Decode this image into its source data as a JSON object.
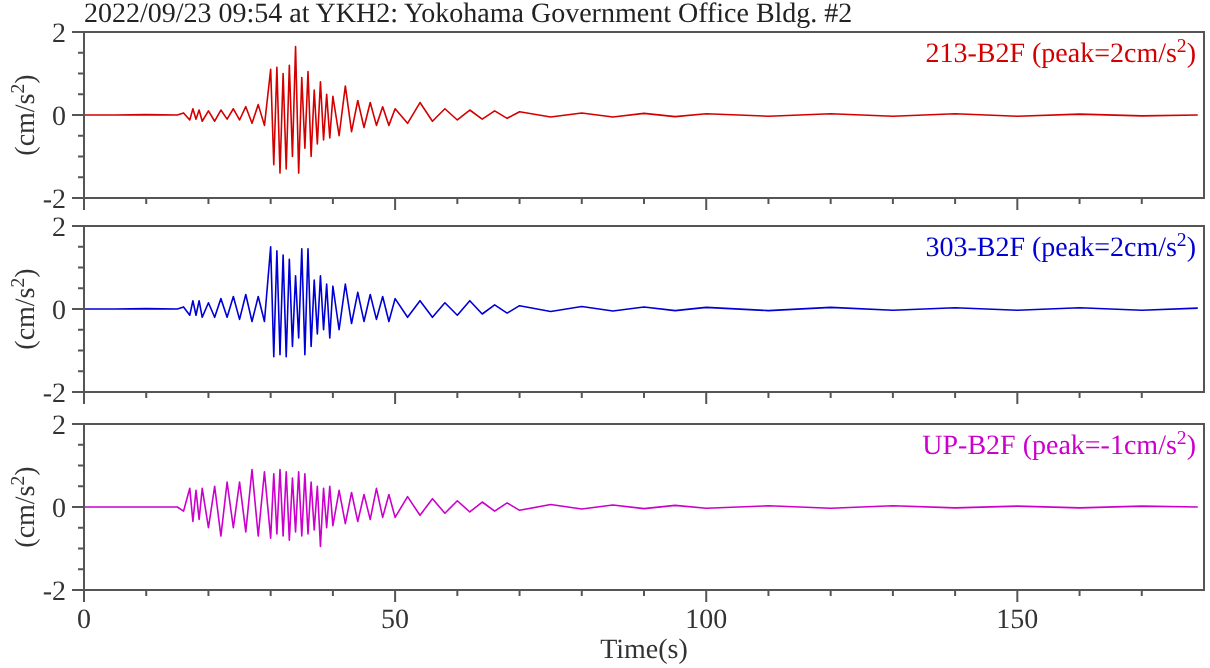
{
  "chart_data": [
    {
      "type": "line",
      "title": "2022/09/23 09:54 at YKH2: Yokohama Government Office Bldg. #2",
      "ylabel": "(cm/s$^{2}$)",
      "tick_labels": "y",
      "xlim": [
        0,
        180
      ],
      "xticks": [
        0,
        {
          "value": 10,
          "label": null
        },
        {
          "value": 20,
          "label": null
        },
        {
          "value": 30,
          "label": null
        },
        {
          "value": 40,
          "label": null
        },
        50,
        {
          "value": 60,
          "label": null
        },
        {
          "value": 70,
          "label": null
        },
        {
          "value": 80,
          "label": null
        },
        {
          "value": 90,
          "label": null
        },
        100,
        {
          "value": 110,
          "label": null
        },
        {
          "value": 120,
          "label": null
        },
        {
          "value": 130,
          "label": null
        },
        {
          "value": 140,
          "label": null
        },
        150,
        {
          "value": 160,
          "label": null
        },
        {
          "value": 170,
          "label": null
        }
      ],
      "ylim": [
        -2,
        2
      ],
      "yticks": [
        -2,
        {
          "value": -1.5,
          "label": null
        },
        {
          "value": -1,
          "label": null
        },
        {
          "value": -0.5,
          "label": null
        },
        0,
        {
          "value": 0.5,
          "label": null
        },
        {
          "value": 1,
          "label": null
        },
        {
          "value": 1.5,
          "label": null
        },
        2
      ],
      "x": [
        0,
        5,
        10,
        15,
        16,
        17,
        17.5,
        18,
        18.5,
        19,
        20,
        21,
        22,
        23,
        24,
        25,
        26,
        27,
        28,
        29,
        30,
        30.5,
        31,
        31.5,
        32,
        32.5,
        33,
        33.5,
        34,
        34.5,
        35,
        35.5,
        36,
        36.5,
        37,
        37.5,
        38,
        38.5,
        39,
        39.5,
        40,
        41,
        42,
        43,
        44,
        45,
        46,
        47,
        48,
        49,
        50,
        52,
        54,
        56,
        58,
        60,
        62,
        64,
        66,
        68,
        70,
        75,
        80,
        85,
        90,
        95,
        100,
        110,
        120,
        130,
        140,
        150,
        160,
        170,
        179
      ],
      "series": [
        {
          "name": "213-B2F (peak=2cm/s$^{2}$)",
          "color": "#d40000",
          "values": [
            0,
            0,
            0.01,
            0,
            0.05,
            -0.12,
            0.15,
            -0.1,
            0.12,
            -0.15,
            0.1,
            -0.15,
            0.12,
            -0.1,
            0.15,
            -0.12,
            0.2,
            -0.2,
            0.25,
            -0.25,
            1.1,
            -1.2,
            1.15,
            -1.4,
            1.0,
            -1.3,
            1.2,
            -1.0,
            1.65,
            -1.4,
            0.9,
            -0.8,
            1.05,
            -1.0,
            0.6,
            -0.7,
            0.8,
            -0.6,
            0.5,
            -0.55,
            0.45,
            -0.5,
            0.7,
            -0.4,
            0.35,
            -0.3,
            0.3,
            -0.25,
            0.2,
            -0.25,
            0.15,
            -0.2,
            0.3,
            -0.15,
            0.15,
            -0.12,
            0.12,
            -0.1,
            0.1,
            -0.08,
            0.08,
            -0.05,
            0.05,
            -0.05,
            0.04,
            -0.04,
            0.03,
            -0.03,
            0.03,
            -0.03,
            0.03,
            -0.03,
            0.02,
            -0.02,
            0
          ]
        }
      ]
    },
    {
      "type": "line",
      "ylabel": "(cm/s$^{2}$)",
      "tick_labels": "y",
      "xlim": [
        0,
        180
      ],
      "xticks": [
        0,
        {
          "value": 10,
          "label": null
        },
        {
          "value": 20,
          "label": null
        },
        {
          "value": 30,
          "label": null
        },
        {
          "value": 40,
          "label": null
        },
        50,
        {
          "value": 60,
          "label": null
        },
        {
          "value": 70,
          "label": null
        },
        {
          "value": 80,
          "label": null
        },
        {
          "value": 90,
          "label": null
        },
        100,
        {
          "value": 110,
          "label": null
        },
        {
          "value": 120,
          "label": null
        },
        {
          "value": 130,
          "label": null
        },
        {
          "value": 140,
          "label": null
        },
        150,
        {
          "value": 160,
          "label": null
        },
        {
          "value": 170,
          "label": null
        }
      ],
      "ylim": [
        -2,
        2
      ],
      "yticks": [
        -2,
        {
          "value": -1.5,
          "label": null
        },
        {
          "value": -1,
          "label": null
        },
        {
          "value": -0.5,
          "label": null
        },
        0,
        {
          "value": 0.5,
          "label": null
        },
        {
          "value": 1,
          "label": null
        },
        {
          "value": 1.5,
          "label": null
        },
        2
      ],
      "x": [
        0,
        5,
        10,
        15,
        16,
        17,
        17.5,
        18,
        18.5,
        19,
        20,
        21,
        22,
        23,
        24,
        25,
        26,
        27,
        28,
        29,
        30,
        30.5,
        31,
        31.5,
        32,
        32.5,
        33,
        33.5,
        34,
        34.5,
        35,
        35.5,
        36,
        36.5,
        37,
        37.5,
        38,
        38.5,
        39,
        39.5,
        40,
        41,
        42,
        43,
        44,
        45,
        46,
        47,
        48,
        49,
        50,
        52,
        54,
        56,
        58,
        60,
        62,
        64,
        66,
        68,
        70,
        75,
        80,
        85,
        90,
        95,
        100,
        110,
        120,
        130,
        140,
        150,
        160,
        170,
        179
      ],
      "series": [
        {
          "name": "303-B2F (peak=2cm/s$^{2}$)",
          "color": "#0000d4",
          "values": [
            0,
            0,
            0.01,
            0,
            0.05,
            -0.15,
            0.2,
            -0.15,
            0.2,
            -0.2,
            0.15,
            -0.2,
            0.25,
            -0.2,
            0.3,
            -0.25,
            0.35,
            -0.3,
            0.3,
            -0.3,
            1.5,
            -1.15,
            1.4,
            -1.1,
            1.3,
            -1.15,
            1.2,
            -0.9,
            0.8,
            -0.7,
            1.45,
            -1.1,
            1.45,
            -0.9,
            0.7,
            -0.6,
            0.8,
            -0.5,
            0.6,
            -0.7,
            0.55,
            -0.5,
            0.6,
            -0.35,
            0.4,
            -0.3,
            0.35,
            -0.25,
            0.3,
            -0.3,
            0.25,
            -0.2,
            0.2,
            -0.2,
            0.15,
            -0.15,
            0.2,
            -0.12,
            0.1,
            -0.1,
            0.08,
            -0.06,
            0.06,
            -0.05,
            0.05,
            -0.04,
            0.04,
            -0.04,
            0.04,
            -0.03,
            0.03,
            -0.03,
            0.03,
            -0.03,
            0.02
          ]
        }
      ]
    },
    {
      "type": "line",
      "ylabel": "(cm/s$^{2}$)",
      "xlabel": "Time(s)",
      "xlim": [
        0,
        180
      ],
      "xticks": [
        0,
        {
          "value": 10,
          "label": null
        },
        {
          "value": 20,
          "label": null
        },
        {
          "value": 30,
          "label": null
        },
        {
          "value": 40,
          "label": null
        },
        50,
        {
          "value": 60,
          "label": null
        },
        {
          "value": 70,
          "label": null
        },
        {
          "value": 80,
          "label": null
        },
        {
          "value": 90,
          "label": null
        },
        100,
        {
          "value": 110,
          "label": null
        },
        {
          "value": 120,
          "label": null
        },
        {
          "value": 130,
          "label": null
        },
        {
          "value": 140,
          "label": null
        },
        150,
        {
          "value": 160,
          "label": null
        },
        {
          "value": 170,
          "label": null
        }
      ],
      "ylim": [
        -2,
        2
      ],
      "yticks": [
        -2,
        {
          "value": -1.5,
          "label": null
        },
        {
          "value": -1,
          "label": null
        },
        {
          "value": -0.5,
          "label": null
        },
        0,
        {
          "value": 0.5,
          "label": null
        },
        {
          "value": 1,
          "label": null
        },
        {
          "value": 1.5,
          "label": null
        },
        2
      ],
      "x": [
        0,
        5,
        10,
        15,
        16,
        17,
        17.5,
        18,
        18.5,
        19,
        20,
        21,
        22,
        23,
        24,
        25,
        26,
        27,
        28,
        29,
        30,
        30.5,
        31,
        31.5,
        32,
        32.5,
        33,
        33.5,
        34,
        34.5,
        35,
        35.5,
        36,
        36.5,
        37,
        37.5,
        38,
        38.5,
        39,
        39.5,
        40,
        41,
        42,
        43,
        44,
        45,
        46,
        47,
        48,
        49,
        50,
        52,
        54,
        56,
        58,
        60,
        62,
        64,
        66,
        68,
        70,
        75,
        80,
        85,
        90,
        95,
        100,
        110,
        120,
        130,
        140,
        150,
        160,
        170,
        179
      ],
      "series": [
        {
          "name": "UP-B2F (peak=-1cm/s$^{2}$)",
          "color": "#cc00cc",
          "values": [
            0,
            0,
            0,
            0,
            -0.1,
            0.45,
            -0.35,
            0.4,
            -0.3,
            0.45,
            -0.5,
            0.5,
            -0.7,
            0.6,
            -0.5,
            0.6,
            -0.6,
            0.9,
            -0.7,
            0.85,
            -0.75,
            0.8,
            -0.65,
            0.9,
            -0.7,
            0.85,
            -0.8,
            0.7,
            -0.6,
            0.85,
            -0.7,
            0.8,
            -0.65,
            0.6,
            -0.55,
            0.5,
            -0.95,
            0.45,
            -0.5,
            0.5,
            -0.45,
            0.4,
            -0.4,
            0.35,
            -0.35,
            0.3,
            -0.3,
            0.45,
            -0.25,
            0.3,
            -0.25,
            0.25,
            -0.2,
            0.2,
            -0.15,
            0.15,
            -0.12,
            0.12,
            -0.1,
            0.1,
            -0.08,
            0.06,
            -0.05,
            0.05,
            -0.04,
            0.04,
            -0.03,
            0.03,
            -0.03,
            0.03,
            -0.02,
            0.02,
            -0.02,
            0.02,
            0
          ]
        }
      ]
    }
  ]
}
